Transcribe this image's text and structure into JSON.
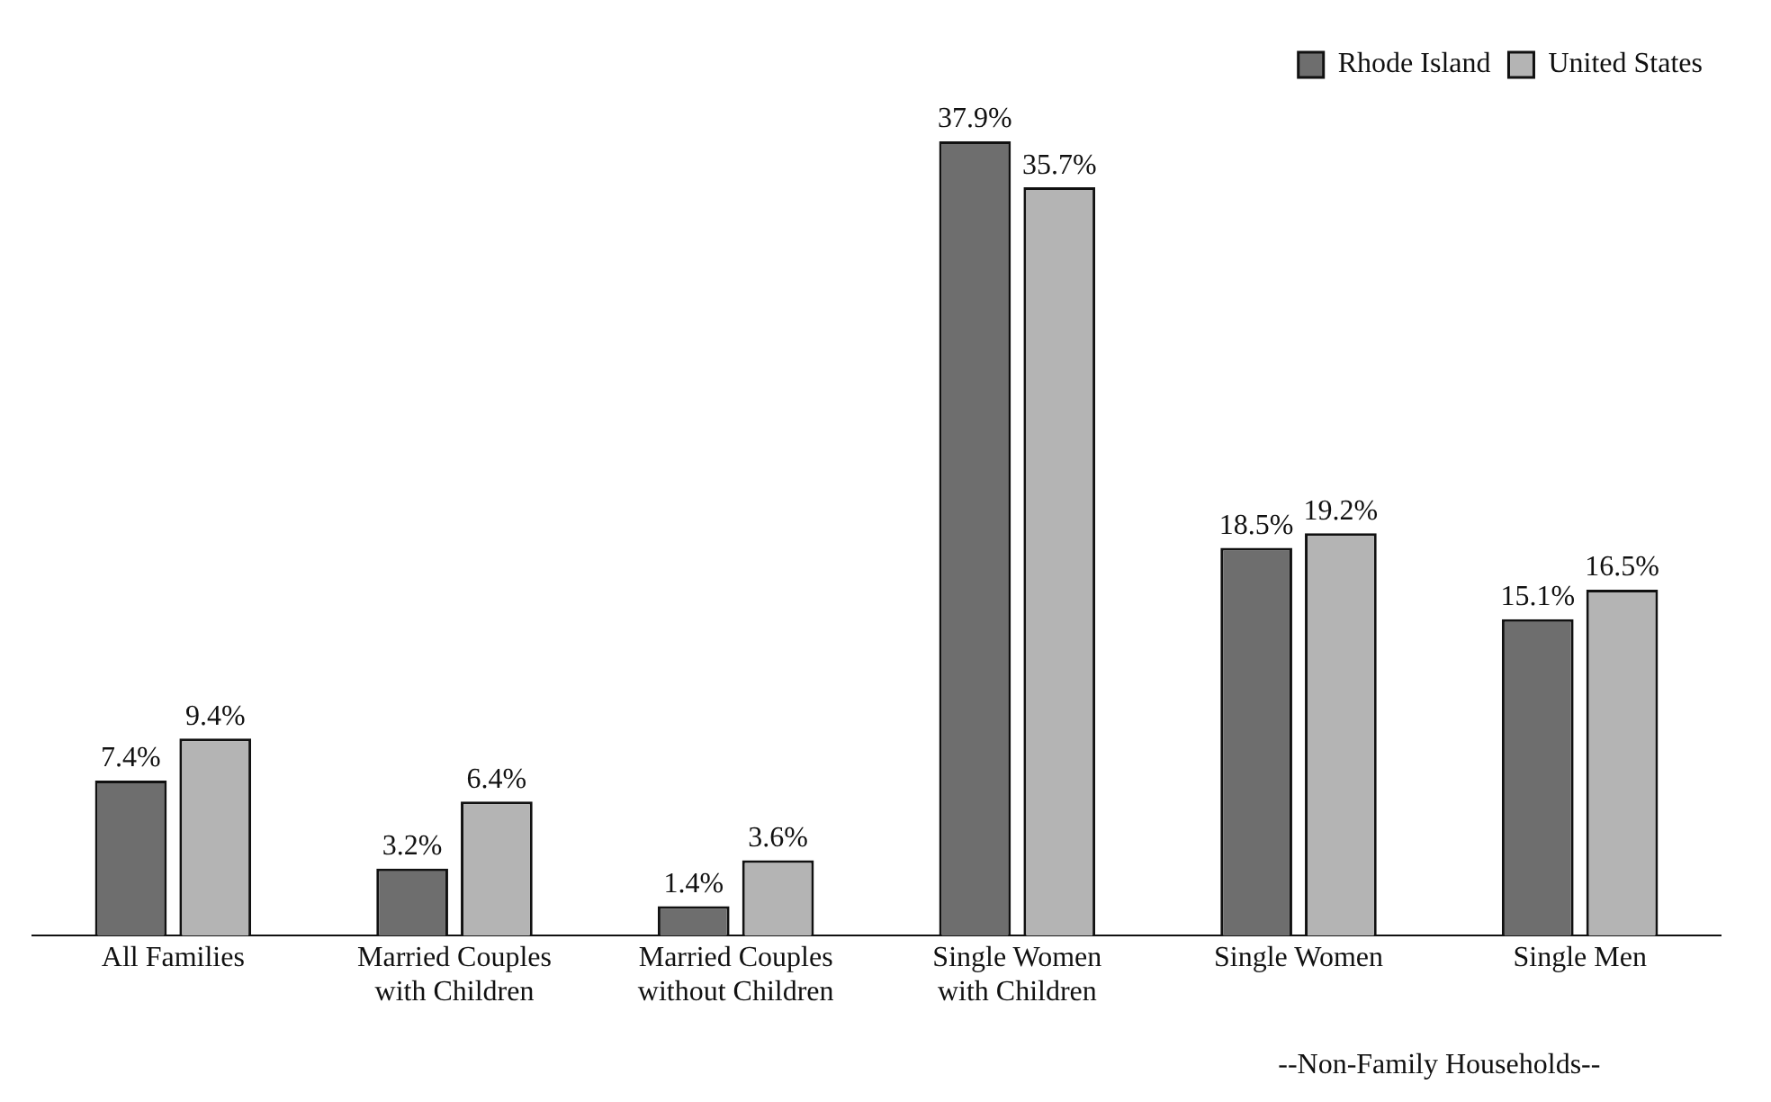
{
  "chart_data": {
    "type": "bar",
    "categories": [
      "All Families",
      "Married Couples\nwith Children",
      "Married Couples\nwithout Children",
      "Single Women\nwith Children",
      "Single Women",
      "Single Men"
    ],
    "series": [
      {
        "name": "Rhode Island",
        "color": "#6e6e6e",
        "values": [
          7.4,
          3.2,
          1.4,
          37.9,
          18.5,
          15.1
        ],
        "value_labels": [
          "7.4%",
          "3.2%",
          "1.4%",
          "37.9%",
          "18.5%",
          "15.1%"
        ]
      },
      {
        "name": "United States",
        "color": "#b4b4b4",
        "values": [
          9.4,
          6.4,
          3.6,
          35.7,
          19.2,
          16.5
        ],
        "value_labels": [
          "9.4%",
          "6.4%",
          "3.6%",
          "35.7%",
          "19.2%",
          "16.5%"
        ]
      }
    ],
    "legend": "top right",
    "grid": false,
    "annotations": [
      "--Non-Family Households--"
    ]
  }
}
